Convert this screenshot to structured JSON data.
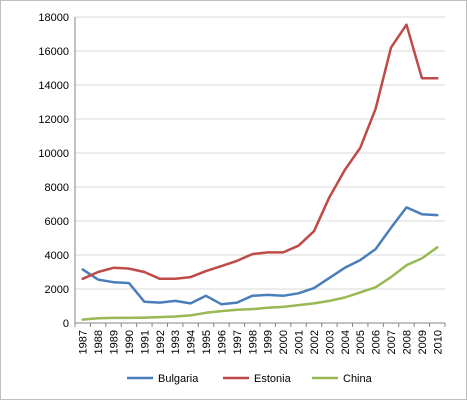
{
  "chart_data": {
    "type": "line",
    "title": "",
    "xlabel": "",
    "ylabel": "",
    "x": [
      "1987",
      "1988",
      "1989",
      "1990",
      "1991",
      "1992",
      "1993",
      "1994",
      "1995",
      "1996",
      "1997",
      "1998",
      "1999",
      "2000",
      "2001",
      "2002",
      "2003",
      "2004",
      "2005",
      "2006",
      "2007",
      "2008",
      "2009",
      "2010"
    ],
    "ylim": [
      0,
      18000
    ],
    "yticks": [
      "0",
      "2000",
      "4000",
      "6000",
      "8000",
      "10000",
      "12000",
      "14000",
      "16000",
      "18000"
    ],
    "grid": "horizontal",
    "legend_position": "bottom",
    "series": [
      {
        "name": "Bulgaria",
        "color": "#4a7ebb",
        "values": [
          3150,
          2550,
          2400,
          2350,
          1250,
          1200,
          1300,
          1150,
          1600,
          1100,
          1200,
          1600,
          1650,
          1600,
          1750,
          2050,
          2650,
          3250,
          3700,
          4350,
          5600,
          6800,
          6400,
          6350
        ]
      },
      {
        "name": "Estonia",
        "color": "#be4b48",
        "values": [
          2600,
          3000,
          3250,
          3200,
          3000,
          2600,
          2600,
          2700,
          3050,
          3350,
          3650,
          4050,
          4150,
          4150,
          4550,
          5400,
          7400,
          9000,
          10300,
          12600,
          16200,
          17550,
          14400,
          14400
        ]
      },
      {
        "name": "China",
        "color": "#98b954",
        "values": [
          200,
          280,
          300,
          300,
          320,
          350,
          380,
          450,
          600,
          700,
          780,
          820,
          900,
          950,
          1050,
          1150,
          1300,
          1500,
          1800,
          2100,
          2700,
          3400,
          3800,
          4450
        ]
      }
    ]
  }
}
